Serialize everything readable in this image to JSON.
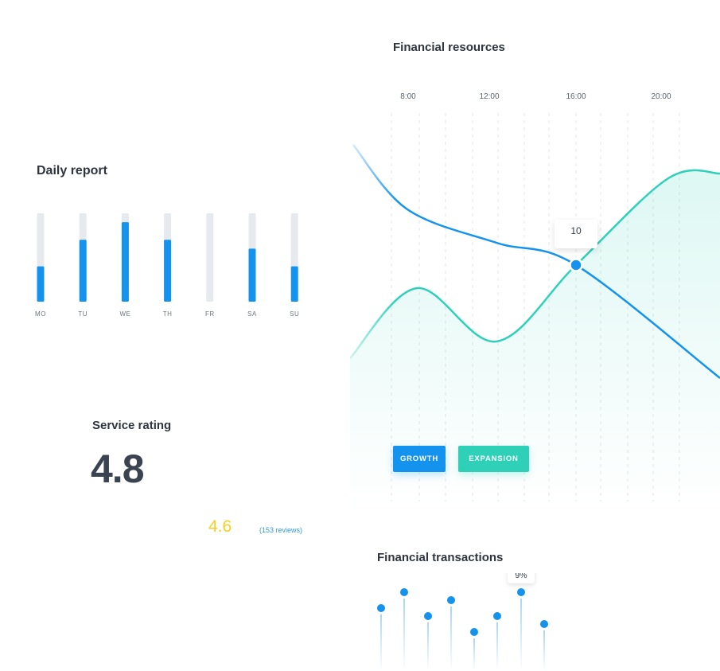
{
  "daily_report": {
    "title": "Daily report"
  },
  "service_rating": {
    "title": "Service rating",
    "value": "4.8",
    "secondary_value": "4.6",
    "reviews": "(153 reviews)"
  },
  "financial_resources": {
    "title": "Financial resources",
    "buttons": {
      "growth": "GROWTH",
      "expansion": "EXPANSION"
    },
    "tooltip": "10"
  },
  "financial_transactions": {
    "title": "Financial transactions",
    "tooltip": "9%"
  },
  "colors": {
    "blue": "#1493ee",
    "teal": "#2ed1b8",
    "track": "#e6e9ee",
    "yellow": "#f5d020"
  },
  "chart_data": [
    {
      "type": "bar",
      "title": "Daily report",
      "categories": [
        "MO",
        "TU",
        "WE",
        "TH",
        "FR",
        "SA",
        "SU"
      ],
      "values": [
        40,
        70,
        90,
        70,
        0,
        60,
        40
      ],
      "ylim": [
        0,
        100
      ],
      "grid": false
    },
    {
      "type": "line",
      "title": "Financial resources",
      "x": [
        "8:00",
        "12:00",
        "16:00",
        "20:00"
      ],
      "series": [
        {
          "name": "GROWTH",
          "color": "#1493ee",
          "values": [
            15,
            11,
            10,
            5
          ]
        },
        {
          "name": "EXPANSION",
          "color": "#2ed1b8",
          "values": [
            6,
            4,
            10,
            15
          ]
        }
      ],
      "annotations": [
        {
          "x": "16:00",
          "value": 10,
          "label": "10"
        }
      ],
      "grid": true,
      "legend": "bottom-left"
    },
    {
      "type": "scatter",
      "title": "Financial transactions",
      "values": [
        7,
        9,
        6,
        8,
        4,
        6,
        9,
        5
      ],
      "annotations": [
        {
          "index": 6,
          "label": "9%"
        }
      ]
    }
  ]
}
